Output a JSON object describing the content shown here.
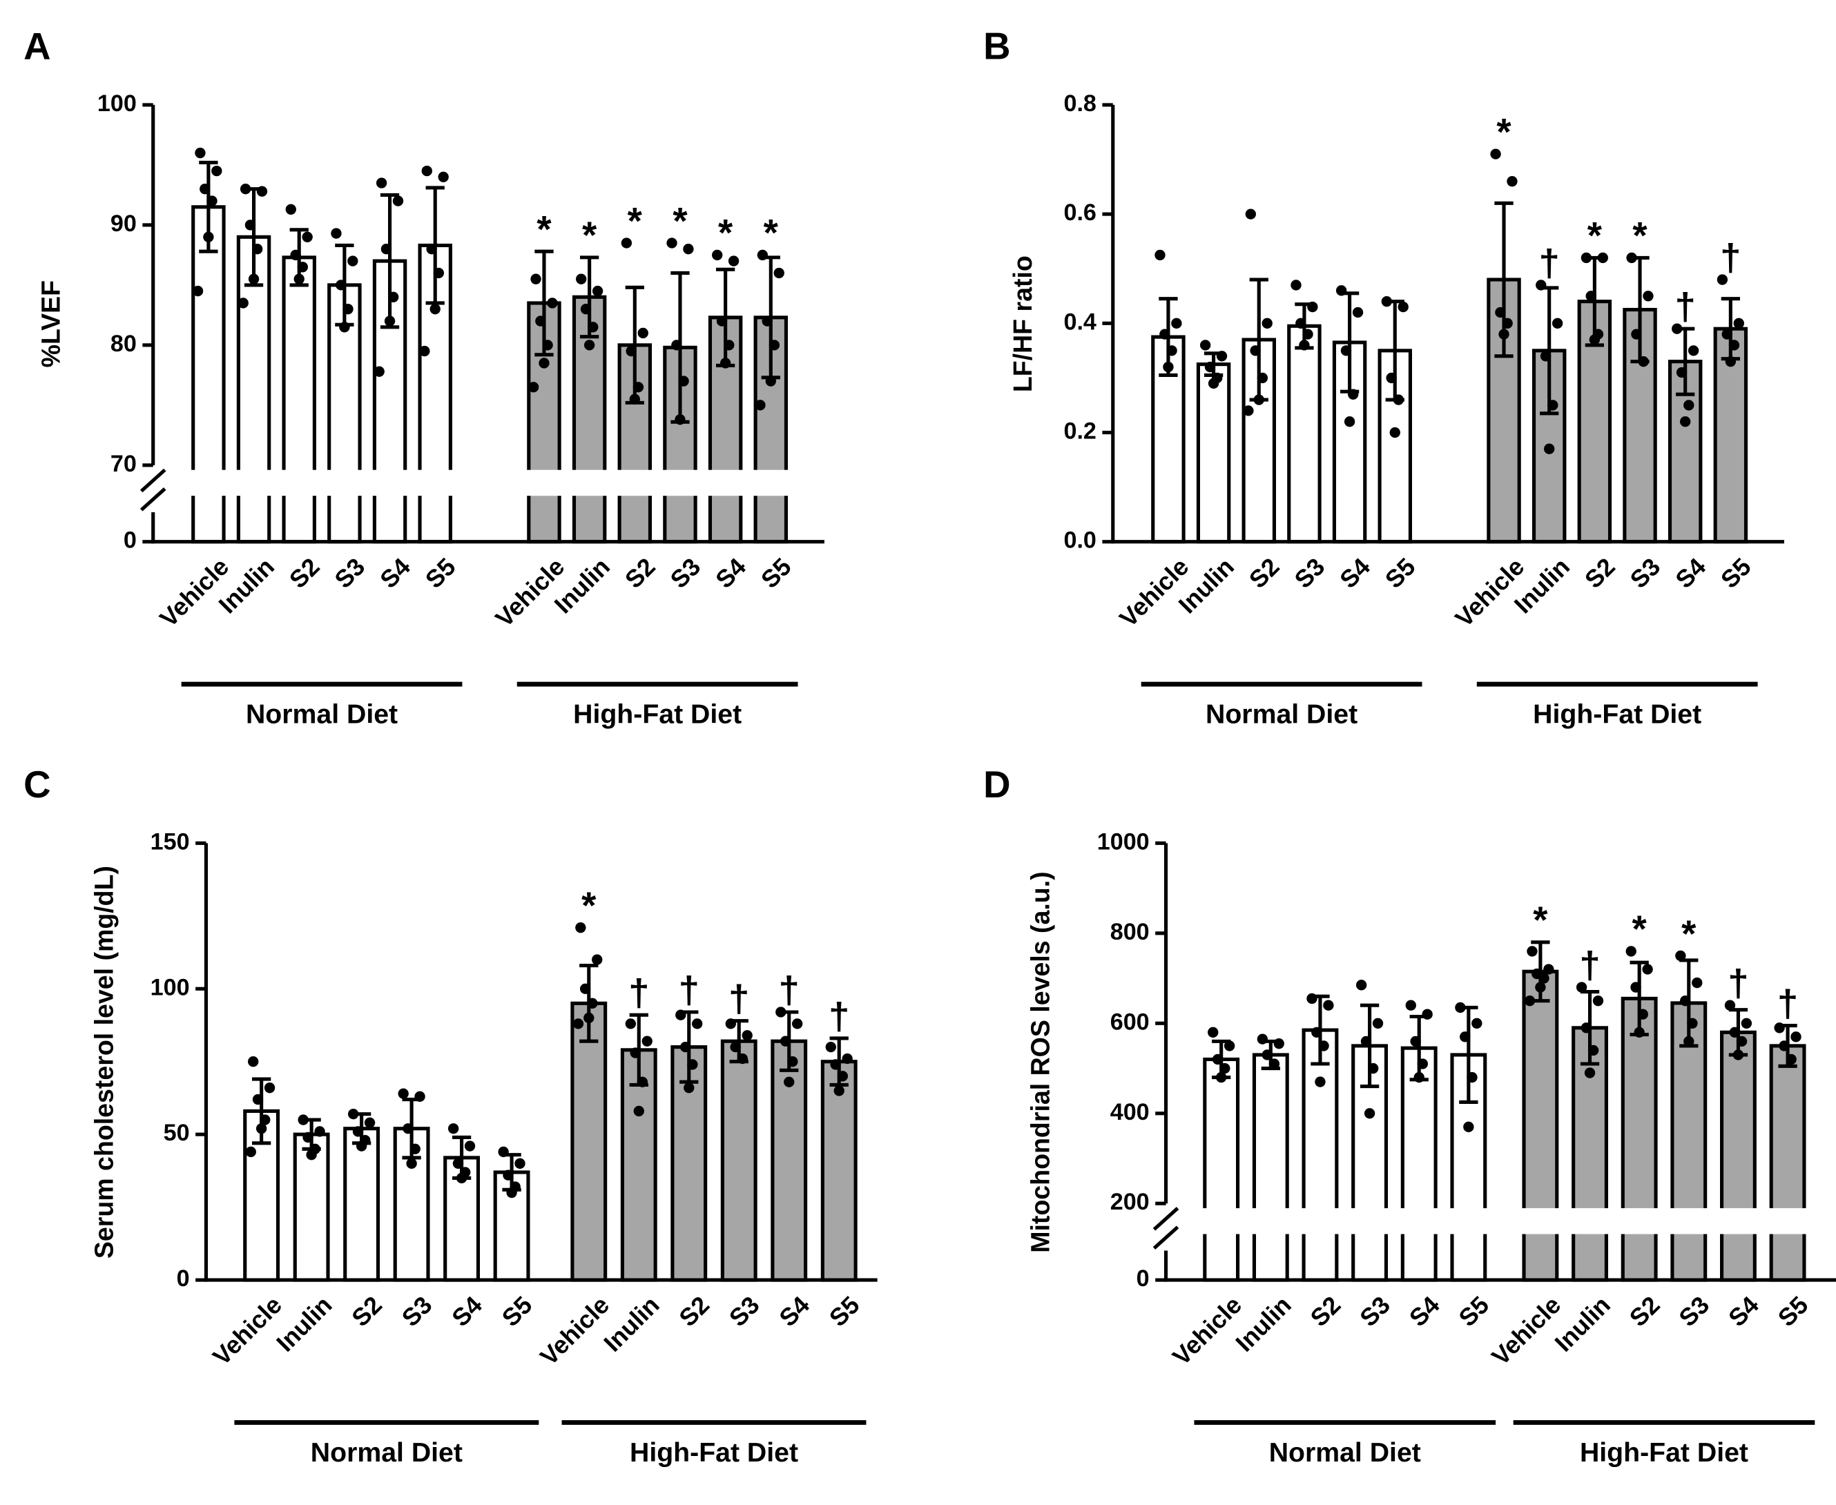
{
  "chart_data": [
    {
      "type": "bar",
      "label": "A",
      "ylabel": "%LVEF",
      "ylim": [
        0,
        100
      ],
      "yticks": [
        0,
        70,
        80,
        90,
        100
      ],
      "y_break": 70,
      "groups": [
        {
          "name": "Normal Diet",
          "color": "#ffffff",
          "categories": [
            "Vehicle",
            "Inulin",
            "S2",
            "S3",
            "S4",
            "S5"
          ],
          "values": [
            91.5,
            89,
            87.3,
            85,
            87,
            88.3
          ],
          "errors": [
            3.7,
            4,
            2.3,
            3.3,
            5.5,
            4.8
          ],
          "points": [
            [
              96,
              94.5,
              93,
              92,
              89,
              84.5
            ],
            [
              93,
              92.8,
              90,
              88,
              85.5,
              83.5
            ],
            [
              91.3,
              89,
              87.5,
              86.5,
              85.5
            ],
            [
              89.3,
              87,
              85,
              83,
              81.5
            ],
            [
              93.5,
              92,
              88,
              84,
              82,
              77.8
            ],
            [
              94.5,
              94,
              88,
              86,
              83,
              79.5
            ]
          ]
        },
        {
          "name": "High-Fat Diet",
          "color": "#a6a6a6",
          "categories": [
            "Vehicle",
            "Inulin",
            "S2",
            "S3",
            "S4",
            "S5"
          ],
          "values": [
            83.5,
            84,
            80,
            79.8,
            82.3,
            82.3
          ],
          "errors": [
            4.3,
            3.3,
            4.8,
            6.2,
            4,
            5
          ],
          "points": [
            [
              85.5,
              83.5,
              82,
              80,
              78.5,
              76.5
            ],
            [
              85.5,
              84.5,
              83,
              81.5,
              80
            ],
            [
              88.5,
              81,
              79.5,
              76.5,
              75.5
            ],
            [
              88.5,
              88,
              80,
              77,
              73.8
            ],
            [
              87.5,
              87,
              82,
              80,
              78.5
            ],
            [
              87.5,
              86,
              82,
              80,
              77,
              75
            ]
          ],
          "annotations": [
            "*",
            "*",
            "*",
            "*",
            "*",
            "*"
          ]
        }
      ]
    },
    {
      "type": "bar",
      "label": "B",
      "ylabel": "LF/HF ratio",
      "ylim": [
        0,
        0.8
      ],
      "yticks": [
        {
          "value": 0,
          "label": "0.0"
        },
        0.2,
        0.4,
        0.6,
        0.8
      ],
      "groups": [
        {
          "name": "Normal Diet",
          "color": "#ffffff",
          "categories": [
            "Vehicle",
            "Inulin",
            "S2",
            "S3",
            "S4",
            "S5"
          ],
          "values": [
            0.375,
            0.325,
            0.37,
            0.395,
            0.365,
            0.35
          ],
          "errors": [
            0.07,
            0.02,
            0.11,
            0.04,
            0.09,
            0.09
          ],
          "points": [
            [
              0.525,
              0.4,
              0.38,
              0.35,
              0.32
            ],
            [
              0.36,
              0.34,
              0.32,
              0.3,
              0.29
            ],
            [
              0.6,
              0.4,
              0.35,
              0.3,
              0.26,
              0.24
            ],
            [
              0.47,
              0.43,
              0.4,
              0.38,
              0.36
            ],
            [
              0.46,
              0.42,
              0.35,
              0.27,
              0.22
            ],
            [
              0.44,
              0.43,
              0.3,
              0.26,
              0.2
            ]
          ]
        },
        {
          "name": "High-Fat Diet",
          "color": "#a6a6a6",
          "categories": [
            "Vehicle",
            "Inulin",
            "S2",
            "S3",
            "S4",
            "S5"
          ],
          "values": [
            0.48,
            0.35,
            0.44,
            0.425,
            0.33,
            0.39
          ],
          "errors": [
            0.14,
            0.115,
            0.08,
            0.095,
            0.06,
            0.055
          ],
          "points": [
            [
              0.71,
              0.66,
              0.42,
              0.4,
              0.38
            ],
            [
              0.47,
              0.4,
              0.34,
              0.25,
              0.17
            ],
            [
              0.52,
              0.52,
              0.45,
              0.38,
              0.37
            ],
            [
              0.52,
              0.45,
              0.38,
              0.33
            ],
            [
              0.39,
              0.35,
              0.31,
              0.25,
              0.22
            ],
            [
              0.48,
              0.4,
              0.38,
              0.36,
              0.33
            ]
          ],
          "annotations": [
            "*",
            "†",
            "*",
            "*",
            "†",
            "†"
          ]
        }
      ]
    },
    {
      "type": "bar",
      "label": "C",
      "ylabel": "Serum cholesterol level (mg/dL)",
      "ylim": [
        0,
        150
      ],
      "yticks": [
        0,
        50,
        100,
        150
      ],
      "groups": [
        {
          "name": "Normal Diet",
          "color": "#ffffff",
          "categories": [
            "Vehicle",
            "Inulin",
            "S2",
            "S3",
            "S4",
            "S5"
          ],
          "values": [
            58,
            50,
            52,
            52,
            42,
            37
          ],
          "errors": [
            11,
            5,
            5,
            10,
            7,
            6
          ],
          "points": [
            [
              75,
              66,
              62,
              55,
              52,
              44
            ],
            [
              55,
              51,
              49,
              45,
              43
            ],
            [
              57,
              54,
              51,
              48,
              46
            ],
            [
              64,
              63,
              52,
              45,
              40
            ],
            [
              52,
              46,
              40,
              37,
              35
            ],
            [
              44,
              40,
              36,
              32,
              30
            ]
          ]
        },
        {
          "name": "High-Fat Diet",
          "color": "#a6a6a6",
          "categories": [
            "Vehicle",
            "Inulin",
            "S2",
            "S3",
            "S4",
            "S5"
          ],
          "values": [
            95,
            79,
            80,
            82,
            82,
            75
          ],
          "errors": [
            13,
            12,
            12,
            7,
            10,
            8
          ],
          "points": [
            [
              121,
              110,
              100,
              95,
              90,
              88
            ],
            [
              88,
              82,
              78,
              68,
              58
            ],
            [
              91,
              88,
              80,
              74,
              66
            ],
            [
              88,
              84,
              80,
              76
            ],
            [
              92,
              88,
              82,
              75,
              68
            ],
            [
              80,
              76,
              74,
              70,
              65
            ]
          ],
          "annotations": [
            "*",
            "†",
            "†",
            "†",
            "†",
            "†"
          ]
        }
      ]
    },
    {
      "type": "bar",
      "label": "D",
      "ylabel": "Mitochondrial ROS levels (a.u.)",
      "ylim": [
        0,
        1000
      ],
      "yticks": [
        0,
        200,
        400,
        600,
        800,
        1000
      ],
      "y_break": 200,
      "groups": [
        {
          "name": "Normal Diet",
          "color": "#ffffff",
          "categories": [
            "Vehicle",
            "Inulin",
            "S2",
            "S3",
            "S4",
            "S5"
          ],
          "values": [
            520,
            530,
            585,
            550,
            545,
            530
          ],
          "errors": [
            40,
            30,
            75,
            90,
            70,
            105
          ],
          "points": [
            [
              580,
              550,
              520,
              500,
              480
            ],
            [
              565,
              555,
              530,
              510
            ],
            [
              655,
              640,
              580,
              550,
              470
            ],
            [
              685,
              600,
              560,
              500,
              400
            ],
            [
              640,
              620,
              560,
              510,
              480
            ],
            [
              635,
              600,
              570,
              480,
              370
            ]
          ]
        },
        {
          "name": "High-Fat Diet",
          "color": "#a6a6a6",
          "categories": [
            "Vehicle",
            "Inulin",
            "S2",
            "S3",
            "S4",
            "S5"
          ],
          "values": [
            715,
            590,
            655,
            645,
            580,
            550
          ],
          "errors": [
            65,
            80,
            80,
            95,
            50,
            45
          ],
          "points": [
            [
              760,
              720,
              710,
              700,
              680,
              650
            ],
            [
              680,
              650,
              590,
              540,
              490
            ],
            [
              760,
              720,
              680,
              620,
              580
            ],
            [
              750,
              690,
              650,
              600,
              560
            ],
            [
              640,
              600,
              580,
              560,
              530
            ],
            [
              590,
              570,
              550,
              520
            ]
          ],
          "annotations": [
            "*",
            "†",
            "*",
            "*",
            "†",
            "†"
          ]
        }
      ]
    }
  ]
}
